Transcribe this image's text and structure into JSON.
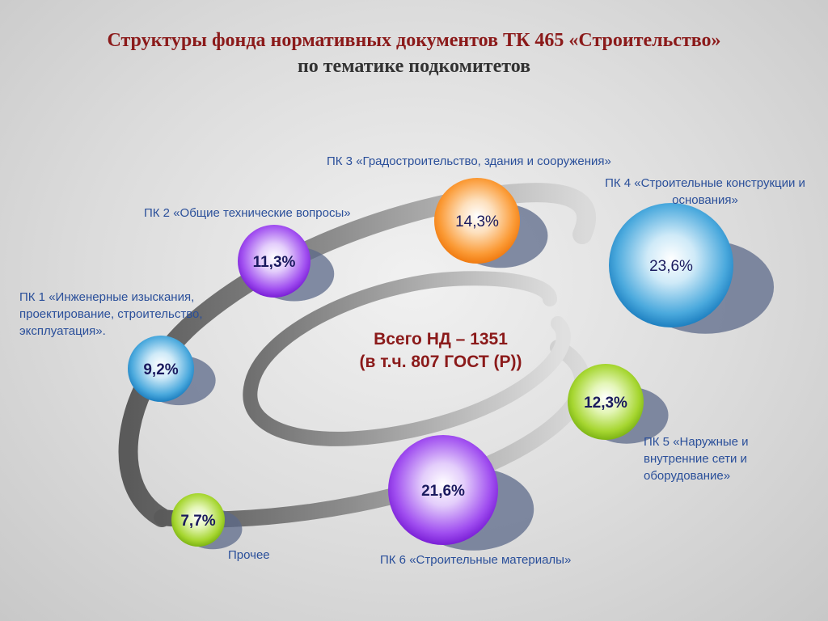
{
  "title": {
    "line1": "Структуры фонда нормативных документов ТК 465 «Строительство»",
    "line2": "по тематике подкомитетов"
  },
  "center": {
    "line1": "Всего  НД – 1351",
    "line2": "(в т.ч. 807 ГОСТ (Р))"
  },
  "colors": {
    "label_text": "#2a4f9a",
    "title_accent": "#8b1a1a",
    "value_text": "#1a1a5e"
  },
  "chart_data": {
    "type": "bubble",
    "title": "Структуры фонда нормативных документов ТК 465 «Строительство» по тематике подкомитетов",
    "unit": "%",
    "items": [
      {
        "label": "ПК 1 «Инженерные изыскания, проектирование, строительство, эксплуатация».",
        "value": 9.2,
        "display": "9,2%",
        "color": "light-blue",
        "bold": true
      },
      {
        "label": "ПК 2 «Общие технические вопросы»",
        "value": 11.3,
        "display": "11,3%",
        "color": "purple",
        "bold": true
      },
      {
        "label": "ПК 3 «Градостроительство, здания и сооружения»",
        "value": 14.3,
        "display": "14,3%",
        "color": "orange",
        "bold": false
      },
      {
        "label": "ПК 4 «Строительные конструкции и основания»",
        "value": 23.6,
        "display": "23,6%",
        "color": "light-blue",
        "bold": false
      },
      {
        "label": "ПК 5 «Наружные и внутренние сети и оборудование»",
        "value": 12.3,
        "display": "12,3%",
        "color": "green",
        "bold": true
      },
      {
        "label": "ПК 6 «Строительные материалы»",
        "value": 21.6,
        "display": "21,6%",
        "color": "purple",
        "bold": true
      },
      {
        "label": "Прочее",
        "value": 7.7,
        "display": "7,7%",
        "color": "green",
        "bold": true
      }
    ]
  }
}
